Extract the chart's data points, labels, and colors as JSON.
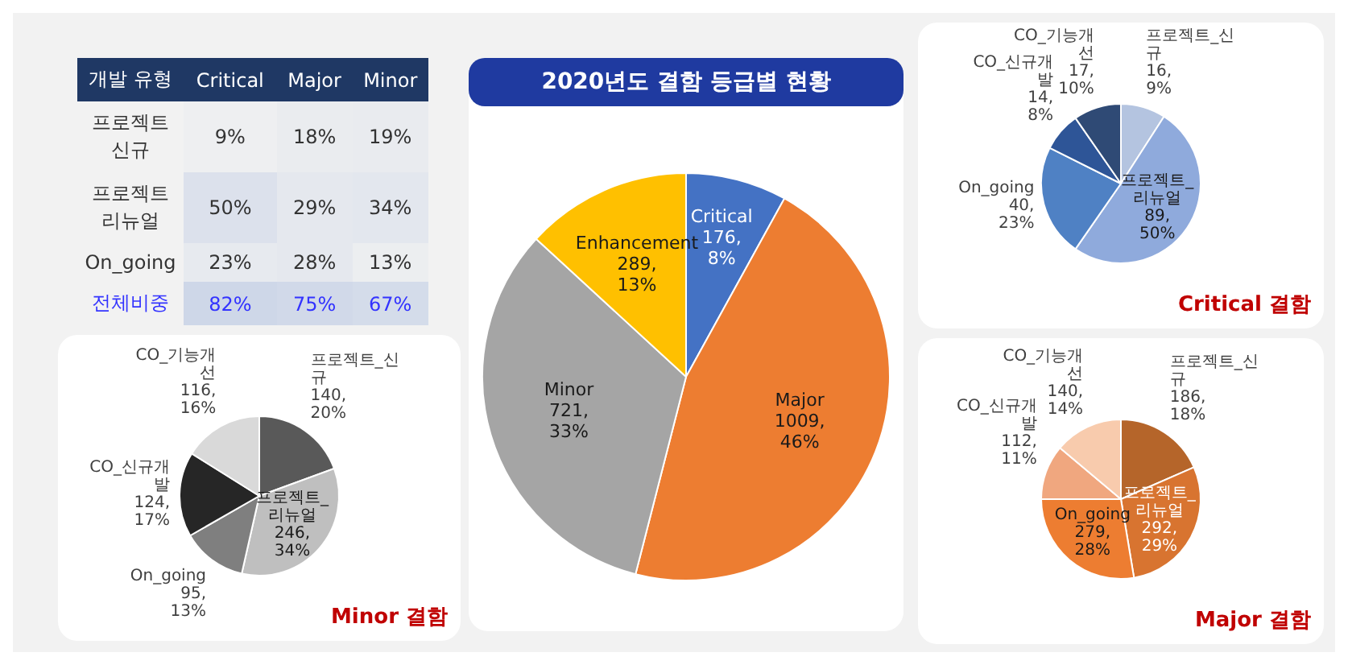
{
  "chart_data": [
    {
      "type": "heatmap",
      "ylabel": "개발 유형",
      "categories": [
        "Critical",
        "Major",
        "Minor"
      ],
      "y_categories": [
        "프로젝트 신규",
        "프로젝트 리뉴얼",
        "On_going",
        "전체비중"
      ],
      "cells": [
        [
          9,
          18,
          19
        ],
        [
          50,
          29,
          34
        ],
        [
          23,
          28,
          13
        ],
        [
          82,
          75,
          67
        ]
      ],
      "cell_labels": [
        [
          "9%",
          "18%",
          "19%"
        ],
        [
          "50%",
          "29%",
          "34%"
        ],
        [
          "23%",
          "28%",
          "13%"
        ],
        [
          "82%",
          "75%",
          "67%"
        ]
      ]
    },
    {
      "type": "pie",
      "title": "2020년도 결함 등급별 현황",
      "categories": [
        "Critical",
        "Major",
        "Minor",
        "Enhancement"
      ],
      "values": [
        176,
        1009,
        721,
        289
      ],
      "colors": [
        "#4472c4",
        "#ed7d31",
        "#a5a5a5",
        "#ffc000"
      ],
      "value_labels": [
        "176, 8%",
        "1009, 46%",
        "721, 33%",
        "289, 13%"
      ]
    },
    {
      "type": "pie",
      "title": "Critical 결함",
      "categories": [
        "프로젝트_신규",
        "프로젝트_리뉴얼",
        "On_going",
        "CO_신규개발",
        "CO_기능개선"
      ],
      "values": [
        16,
        89,
        40,
        14,
        17
      ],
      "colors": [
        "#b4c4e0",
        "#8faadc",
        "#4f81c4",
        "#2e5597",
        "#2f4a75"
      ],
      "value_labels": [
        "16, 9%",
        "89, 50%",
        "40, 23%",
        "14, 8%",
        "17, 10%"
      ]
    },
    {
      "type": "pie",
      "title": "Major 결함",
      "categories": [
        "프로젝트_신규",
        "프로젝트_리뉴얼",
        "On_going",
        "CO_신규개발",
        "CO_기능개선"
      ],
      "values": [
        186,
        292,
        279,
        112,
        140
      ],
      "colors": [
        "#b5652a",
        "#d87430",
        "#ed7d31",
        "#f0a77f",
        "#f8cbad"
      ],
      "value_labels": [
        "186, 18%",
        "292, 29%",
        "279, 28%",
        "112, 11%",
        "140, 14%"
      ]
    },
    {
      "type": "pie",
      "title": "Minor 결함",
      "categories": [
        "프로젝트_신규",
        "프로젝트_리뉴얼",
        "On_going",
        "CO_신규개발",
        "CO_기능개선"
      ],
      "values": [
        140,
        246,
        95,
        124,
        116
      ],
      "colors": [
        "#595959",
        "#bfbfbf",
        "#7f7f7f",
        "#262626",
        "#d9d9d9"
      ],
      "value_labels": [
        "140, 20%",
        "246, 34%",
        "95, 13%",
        "124, 17%",
        "116, 16%"
      ]
    }
  ]
}
